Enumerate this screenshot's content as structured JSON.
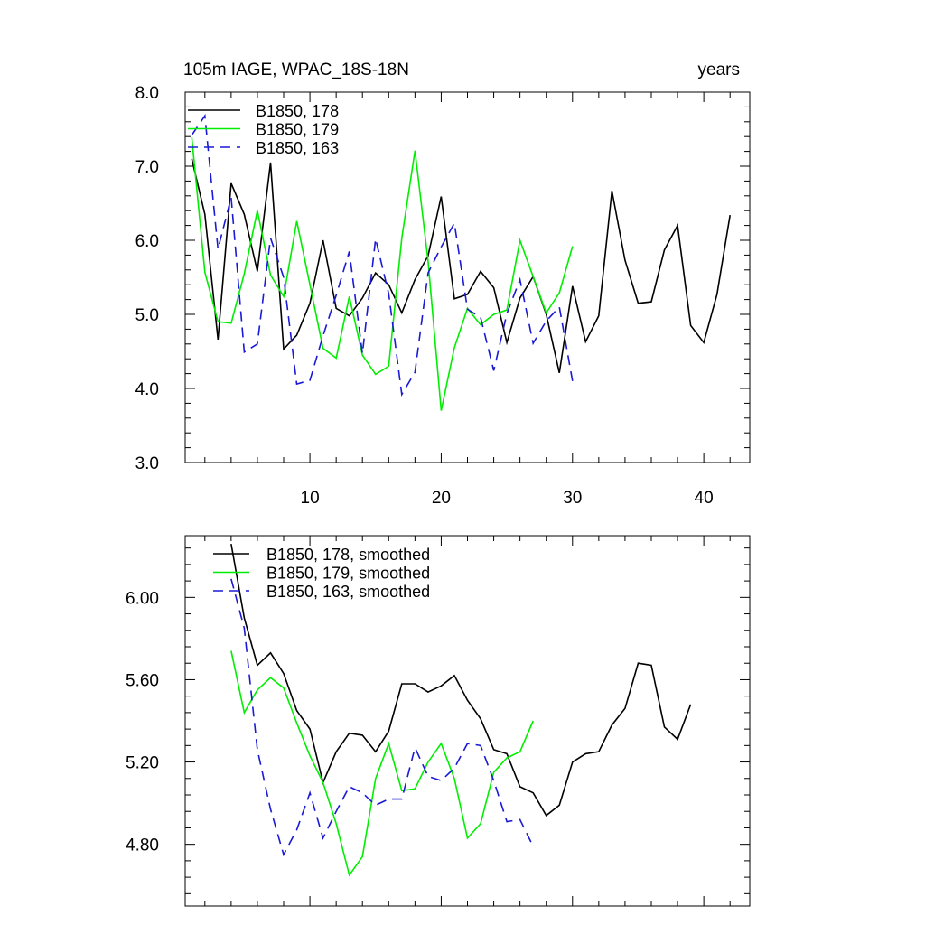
{
  "top_panel": {
    "left_title": "105m IAGE, WPAC_18S-18N",
    "right_title": "years"
  },
  "bottom_panel": {},
  "chart_data": [
    {
      "type": "line",
      "title": "105m IAGE, WPAC_18S-18N",
      "xlabel": "",
      "ylabel": "",
      "unit_label": "years",
      "xlim": [
        0.5,
        43.5
      ],
      "ylim": [
        3.0,
        8.0
      ],
      "x_ticks": [
        10,
        20,
        30,
        40
      ],
      "x_tick_labels": [
        "10",
        "20",
        "30",
        "40"
      ],
      "y_ticks": [
        3.0,
        4.0,
        5.0,
        6.0,
        7.0,
        8.0
      ],
      "y_tick_labels": [
        "3.0",
        "4.0",
        "5.0",
        "6.0",
        "7.0",
        "8.0"
      ],
      "legend_position": "top-left",
      "series": [
        {
          "name": "B1850, 178",
          "color": "#000000",
          "dash": "solid",
          "x": [
            1,
            2,
            3,
            4,
            5,
            6,
            7,
            8,
            9,
            10,
            11,
            12,
            13,
            14,
            15,
            16,
            17,
            18,
            19,
            20,
            21,
            22,
            23,
            24,
            25,
            26,
            27,
            28,
            29,
            30,
            31,
            32,
            33,
            34,
            35,
            36,
            37,
            38,
            39,
            40,
            41,
            42
          ],
          "y": [
            7.1,
            6.35,
            4.66,
            6.77,
            6.35,
            5.58,
            7.05,
            4.53,
            4.72,
            5.15,
            6.0,
            5.08,
            4.98,
            5.22,
            5.56,
            5.4,
            5.02,
            5.47,
            5.79,
            6.59,
            5.21,
            5.27,
            5.58,
            5.36,
            4.62,
            5.22,
            5.51,
            5.0,
            4.21,
            5.38,
            4.63,
            4.98,
            6.67,
            5.73,
            5.15,
            5.17,
            5.87,
            6.2,
            4.85,
            4.62,
            5.27,
            6.34
          ]
        },
        {
          "name": "B1850, 179",
          "color": "#00ee00",
          "dash": "solid",
          "x": [
            1,
            2,
            3,
            4,
            5,
            6,
            7,
            8,
            9,
            10,
            11,
            12,
            13,
            14,
            15,
            16,
            17,
            18,
            19,
            20,
            21,
            22,
            23,
            24,
            25,
            26,
            27,
            28,
            29,
            30
          ],
          "y": [
            7.39,
            5.57,
            4.9,
            4.88,
            5.55,
            6.4,
            5.53,
            5.24,
            6.26,
            5.4,
            4.54,
            4.41,
            5.24,
            4.45,
            4.19,
            4.3,
            6.03,
            7.21,
            5.72,
            3.7,
            4.55,
            5.08,
            4.86,
            5.0,
            5.06,
            6.0,
            5.51,
            5.02,
            5.29,
            5.92
          ]
        },
        {
          "name": "B1850, 163",
          "color": "#1a1ad6",
          "dash": "dashed",
          "x": [
            1,
            2,
            3,
            4,
            5,
            6,
            7,
            8,
            9,
            10,
            11,
            12,
            13,
            14,
            15,
            16,
            17,
            18,
            19,
            20,
            21,
            22,
            23,
            24,
            25,
            26,
            27,
            28,
            29,
            30
          ],
          "y": [
            7.42,
            7.68,
            5.88,
            6.58,
            4.49,
            4.6,
            6.03,
            5.5,
            4.06,
            4.11,
            4.71,
            5.26,
            5.85,
            4.47,
            6.02,
            5.28,
            3.92,
            4.22,
            5.56,
            5.91,
            6.23,
            5.07,
            4.96,
            4.24,
            5.01,
            5.47,
            4.61,
            4.91,
            5.1,
            4.1
          ]
        }
      ]
    },
    {
      "type": "line",
      "title": "",
      "xlabel": "",
      "ylabel": "",
      "xlim": [
        0.5,
        43.5
      ],
      "ylim": [
        4.5,
        6.3
      ],
      "x_ticks": [
        10,
        20,
        30,
        40
      ],
      "y_ticks": [
        4.8,
        5.2,
        5.6,
        6.0
      ],
      "y_tick_labels": [
        "4.80",
        "5.20",
        "5.60",
        "6.00"
      ],
      "legend_position": "top-left",
      "series": [
        {
          "name": "B1850, 178, smoothed",
          "color": "#000000",
          "dash": "solid",
          "x": [
            4,
            5,
            6,
            7,
            8,
            9,
            10,
            11,
            12,
            13,
            14,
            15,
            16,
            17,
            18,
            19,
            20,
            21,
            22,
            23,
            24,
            25,
            26,
            27,
            28,
            29,
            30,
            31,
            32,
            33,
            34,
            35,
            36,
            37,
            38,
            39
          ],
          "y": [
            6.26,
            5.9,
            5.67,
            5.73,
            5.63,
            5.45,
            5.36,
            5.1,
            5.25,
            5.34,
            5.33,
            5.25,
            5.35,
            5.58,
            5.58,
            5.54,
            5.57,
            5.62,
            5.5,
            5.41,
            5.26,
            5.24,
            5.08,
            5.05,
            4.94,
            4.99,
            5.2,
            5.24,
            5.25,
            5.38,
            5.46,
            5.68,
            5.67,
            5.37,
            5.31,
            5.48
          ]
        },
        {
          "name": "B1850, 179, smoothed",
          "color": "#00ee00",
          "dash": "solid",
          "x": [
            4,
            5,
            6,
            7,
            8,
            9,
            10,
            11,
            12,
            13,
            14,
            15,
            16,
            17,
            18,
            19,
            20,
            21,
            22,
            23,
            24,
            25,
            26,
            27
          ],
          "y": [
            5.74,
            5.44,
            5.55,
            5.61,
            5.56,
            5.39,
            5.23,
            5.1,
            4.9,
            4.65,
            4.74,
            5.12,
            5.29,
            5.06,
            5.07,
            5.2,
            5.29,
            5.12,
            4.83,
            4.9,
            5.15,
            5.22,
            5.25,
            5.4
          ]
        },
        {
          "name": "B1850, 163, smoothed",
          "color": "#1a1ad6",
          "dash": "dashed",
          "x": [
            4,
            5,
            6,
            7,
            8,
            9,
            10,
            11,
            12,
            13,
            14,
            15,
            16,
            17,
            18,
            19,
            20,
            21,
            22,
            23,
            24,
            25,
            26,
            27
          ],
          "y": [
            6.09,
            5.85,
            5.26,
            4.97,
            4.75,
            4.87,
            5.05,
            4.83,
            4.96,
            5.08,
            5.05,
            4.99,
            5.02,
            5.02,
            5.27,
            5.13,
            5.11,
            5.17,
            5.29,
            5.28,
            5.11,
            4.91,
            4.92,
            4.79
          ]
        }
      ]
    }
  ]
}
